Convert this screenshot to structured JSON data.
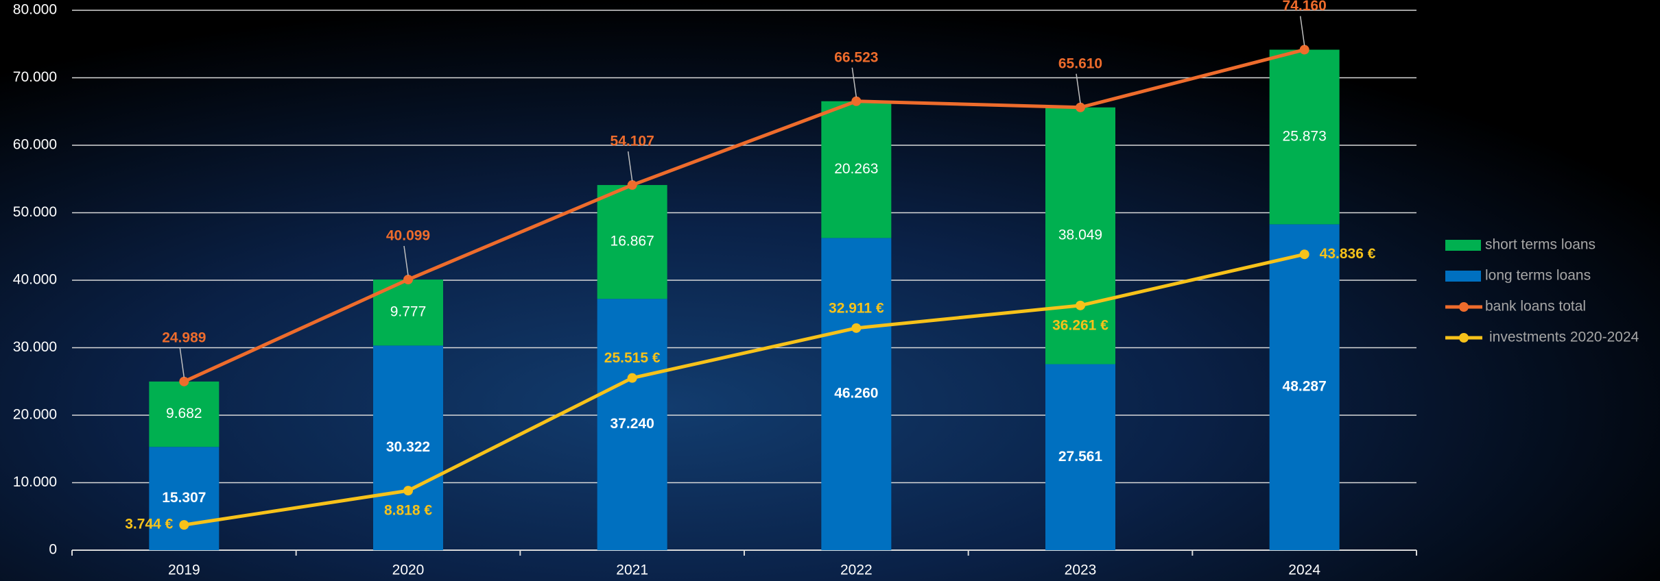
{
  "chart_data": {
    "type": "bar",
    "stacked": true,
    "categories": [
      "2019",
      "2020",
      "2021",
      "2022",
      "2023",
      "2024"
    ],
    "series": [
      {
        "name": "short terms loans",
        "type": "bar",
        "color": "#00b050",
        "values": [
          9682,
          9777,
          16867,
          20263,
          38049,
          25873
        ],
        "value_labels": [
          "9.682",
          "9.777",
          "16.867",
          "20.263",
          "38.049",
          "25.873"
        ]
      },
      {
        "name": "long terms loans",
        "type": "bar",
        "color": "#0070c0",
        "values": [
          15307,
          30322,
          37240,
          46260,
          27561,
          48287
        ],
        "value_labels": [
          "15.307",
          "30.322",
          "37.240",
          "46.260",
          "27.561",
          "48.287"
        ]
      },
      {
        "name": "bank loans total",
        "type": "line",
        "color": "#ee6c2c",
        "values": [
          24989,
          40099,
          54107,
          66523,
          65610,
          74160
        ],
        "value_labels": [
          "24.989",
          "40.099",
          "54.107",
          "66.523",
          "65.610",
          "74.160"
        ]
      },
      {
        "name": "investments 2020-2024",
        "type": "line",
        "color": "#f7c21a",
        "values": [
          3744,
          8818,
          25515,
          32911,
          36261,
          43836
        ],
        "value_labels": [
          "3.744 €",
          "8.818 €",
          "25.515 €",
          "32.911 €",
          "36.261 €",
          "43.836 €"
        ]
      }
    ],
    "ylim": [
      0,
      80000
    ],
    "yticks": [
      0,
      {
        "value": 10000,
        "label": "10.000"
      },
      {
        "value": 20000,
        "label": "20.000"
      },
      {
        "value": 30000,
        "label": "30.000"
      },
      {
        "value": 40000,
        "label": "40.000"
      },
      {
        "value": 50000,
        "label": "50.000"
      },
      {
        "value": 60000,
        "label": "60.000"
      },
      {
        "value": 70000,
        "label": "70.000"
      },
      {
        "value": 80000,
        "label": "80.000"
      }
    ],
    "grid": true,
    "legend": "right"
  }
}
